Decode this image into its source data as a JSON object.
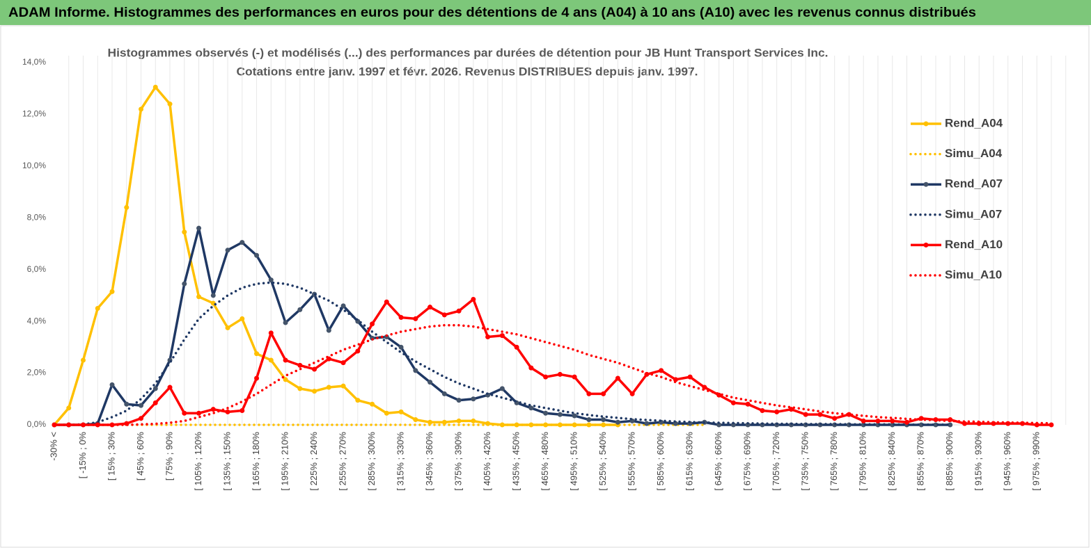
{
  "header": {
    "title": "ADAM Informe. Histogrammes des performances en euros pour des détentions de 4 ans (A04) à 10 ans (A10) avec les revenus connus distribués"
  },
  "chart_data": {
    "type": "line",
    "title": "Histogrammes observés (-) et modélisés (...) des performances par durées de détention pour JB Hunt Transport Services Inc.",
    "subtitle": "Cotations entre janv. 1997 et févr. 2026. Revenus DISTRIBUES depuis janv. 1997.",
    "categories": [
      "-30% <",
      null,
      "[ -15% ; 0%",
      null,
      "[ 15% ; 30%",
      null,
      "[ 45% ; 60%",
      null,
      "[ 75% ; 90%",
      null,
      "[ 105% ; 120%",
      null,
      "[ 135% ; 150%",
      null,
      "[ 165% ; 180%",
      null,
      "[ 195% ; 210%",
      null,
      "[ 225% ; 240%",
      null,
      "[ 255% ; 270%",
      null,
      "[ 285% ; 300%",
      null,
      "[ 315% ; 330%",
      null,
      "[ 345% ; 360%",
      null,
      "[ 375% ; 390%",
      null,
      "[ 405% ; 420%",
      null,
      "[ 435% ; 450%",
      null,
      "[ 465% ; 480%",
      null,
      "[ 495% ; 510%",
      null,
      "[ 525% ; 540%",
      null,
      "[ 555% ; 570%",
      null,
      "[ 585% ; 600%",
      null,
      "[ 615% ; 630%",
      null,
      "[ 645% ; 660%",
      null,
      "[ 675% ; 690%",
      null,
      "[ 705% ; 720%",
      null,
      "[ 735% ; 750%",
      null,
      "[ 765% ; 780%",
      null,
      "[ 795% ; 810%",
      null,
      "[ 825% ; 840%",
      null,
      "[ 855% ; 870%",
      null,
      "[ 885% ; 900%",
      null,
      "[ 915% ; 930%",
      null,
      "[ 945% ; 960%",
      null,
      "[ 975% ; 990%",
      null
    ],
    "series": [
      {
        "name": "Rend_A04",
        "color": "#FFC000",
        "style": "solid",
        "markers": true,
        "values": [
          0,
          0.65,
          2.5,
          4.5,
          5.15,
          8.4,
          12.2,
          13.05,
          12.4,
          7.45,
          4.95,
          4.7,
          3.75,
          4.1,
          2.75,
          2.5,
          1.75,
          1.4,
          1.3,
          1.45,
          1.5,
          0.95,
          0.8,
          0.45,
          0.5,
          0.2,
          0.1,
          0.1,
          0.15,
          0.15,
          0.05,
          0,
          0,
          0,
          0,
          0,
          0,
          0,
          0,
          0,
          null,
          null,
          null,
          null,
          null,
          null,
          null,
          null,
          null,
          null,
          null,
          null,
          null,
          null,
          null,
          null,
          null,
          null,
          null,
          null,
          null,
          null,
          null,
          null,
          null,
          null,
          null,
          null,
          null,
          null
        ]
      },
      {
        "name": "Simu_A04",
        "color": "#FFC000",
        "style": "dotted",
        "markers": false,
        "values": [
          0,
          0,
          0,
          0,
          0,
          0,
          0,
          0,
          0,
          0,
          0,
          0,
          0,
          0,
          0,
          0,
          0,
          0,
          0,
          0,
          0,
          0,
          0,
          0,
          0,
          0,
          0,
          0,
          0,
          0,
          0,
          0,
          0,
          0,
          0,
          0,
          0,
          0,
          0,
          0,
          0,
          0,
          0,
          0,
          0,
          0,
          null,
          null,
          null,
          null,
          null,
          null,
          null,
          null,
          null,
          null,
          null,
          null,
          null,
          null,
          null,
          null,
          null,
          null,
          null,
          null,
          null,
          null,
          null,
          null
        ]
      },
      {
        "name": "Rend_A07",
        "color": "#1F3864",
        "marker_color": "#44546A",
        "style": "solid",
        "markers": true,
        "values": [
          0,
          0,
          0,
          0.05,
          1.55,
          0.8,
          0.75,
          1.4,
          2.5,
          5.45,
          7.6,
          5.0,
          6.75,
          7.05,
          6.55,
          5.6,
          3.95,
          4.45,
          5.05,
          3.65,
          4.6,
          4.0,
          3.35,
          3.4,
          3.0,
          2.1,
          1.65,
          1.2,
          0.95,
          1.0,
          1.15,
          1.4,
          0.85,
          0.65,
          0.45,
          0.4,
          0.35,
          0.2,
          0.2,
          0.1,
          0.15,
          0.05,
          0.1,
          0.05,
          0.05,
          0.1,
          0,
          0,
          0,
          0,
          0,
          0,
          0,
          0,
          0,
          0,
          0,
          0,
          0,
          0,
          0,
          0,
          0,
          null,
          null,
          null,
          null,
          null,
          null,
          null
        ]
      },
      {
        "name": "Simu_A07",
        "color": "#1F3864",
        "style": "dotted",
        "markers": false,
        "values": [
          0,
          0,
          0.02,
          0.1,
          0.3,
          0.55,
          1.0,
          1.6,
          2.4,
          3.3,
          4.1,
          4.6,
          5.0,
          5.3,
          5.45,
          5.5,
          5.45,
          5.3,
          5.05,
          4.8,
          4.45,
          4.05,
          3.6,
          3.2,
          2.8,
          2.45,
          2.15,
          1.85,
          1.6,
          1.4,
          1.2,
          1.05,
          0.9,
          0.75,
          0.65,
          0.55,
          0.45,
          0.38,
          0.32,
          0.27,
          0.22,
          0.19,
          0.16,
          0.13,
          0.11,
          0.09,
          0.08,
          0.07,
          0.06,
          0.05,
          0.04,
          0.04,
          0.03,
          0.03,
          0.03,
          0.02,
          0.02,
          0.02,
          0.02,
          0.01,
          0.01,
          0.01,
          0.01,
          null,
          null,
          null,
          null,
          null,
          null,
          null
        ]
      },
      {
        "name": "Rend_A10",
        "color": "#FF0000",
        "style": "solid",
        "markers": true,
        "values": [
          0,
          0,
          0,
          0,
          0,
          0.05,
          0.25,
          0.85,
          1.45,
          0.45,
          0.45,
          0.6,
          0.5,
          0.55,
          1.8,
          3.55,
          2.5,
          2.3,
          2.15,
          2.55,
          2.4,
          2.85,
          3.9,
          4.75,
          4.15,
          4.1,
          4.55,
          4.25,
          4.4,
          4.85,
          3.4,
          3.45,
          3.0,
          2.2,
          1.85,
          1.95,
          1.85,
          1.2,
          1.2,
          1.8,
          1.2,
          1.95,
          2.1,
          1.75,
          1.85,
          1.45,
          1.15,
          0.85,
          0.8,
          0.55,
          0.5,
          0.6,
          0.4,
          0.4,
          0.25,
          0.4,
          0.15,
          0.15,
          0.15,
          0.1,
          0.25,
          0.2,
          0.2,
          0.05,
          0.05,
          0.05,
          0.05,
          0.05,
          0,
          0
        ]
      },
      {
        "name": "Simu_A10",
        "color": "#FF0000",
        "style": "dotted",
        "markers": false,
        "values": [
          0,
          0,
          0,
          0,
          0,
          0,
          0.02,
          0.04,
          0.08,
          0.15,
          0.3,
          0.45,
          0.65,
          0.9,
          1.2,
          1.55,
          1.9,
          2.15,
          2.4,
          2.65,
          2.9,
          3.1,
          3.3,
          3.45,
          3.6,
          3.7,
          3.8,
          3.85,
          3.85,
          3.8,
          3.7,
          3.6,
          3.5,
          3.35,
          3.2,
          3.05,
          2.9,
          2.7,
          2.55,
          2.4,
          2.2,
          2.0,
          1.85,
          1.65,
          1.5,
          1.35,
          1.2,
          1.05,
          0.95,
          0.85,
          0.75,
          0.68,
          0.6,
          0.52,
          0.45,
          0.4,
          0.35,
          0.3,
          0.27,
          0.23,
          0.2,
          0.18,
          0.15,
          0.13,
          0.12,
          0.1,
          0.09,
          0.08,
          0.07,
          0.06
        ]
      }
    ],
    "ylim": [
      0,
      14
    ],
    "yticks": [
      {
        "value": 0,
        "label": "0,0%"
      },
      {
        "value": 2,
        "label": "2,0%"
      },
      {
        "value": 4,
        "label": "4,0%"
      },
      {
        "value": 6,
        "label": "6,0%"
      },
      {
        "value": 8,
        "label": "8,0%"
      },
      {
        "value": 10,
        "label": "10,0%"
      },
      {
        "value": 12,
        "label": "12,0%"
      },
      {
        "value": 14,
        "label": "14,0%"
      }
    ],
    "grid": "x",
    "legend": "right"
  }
}
